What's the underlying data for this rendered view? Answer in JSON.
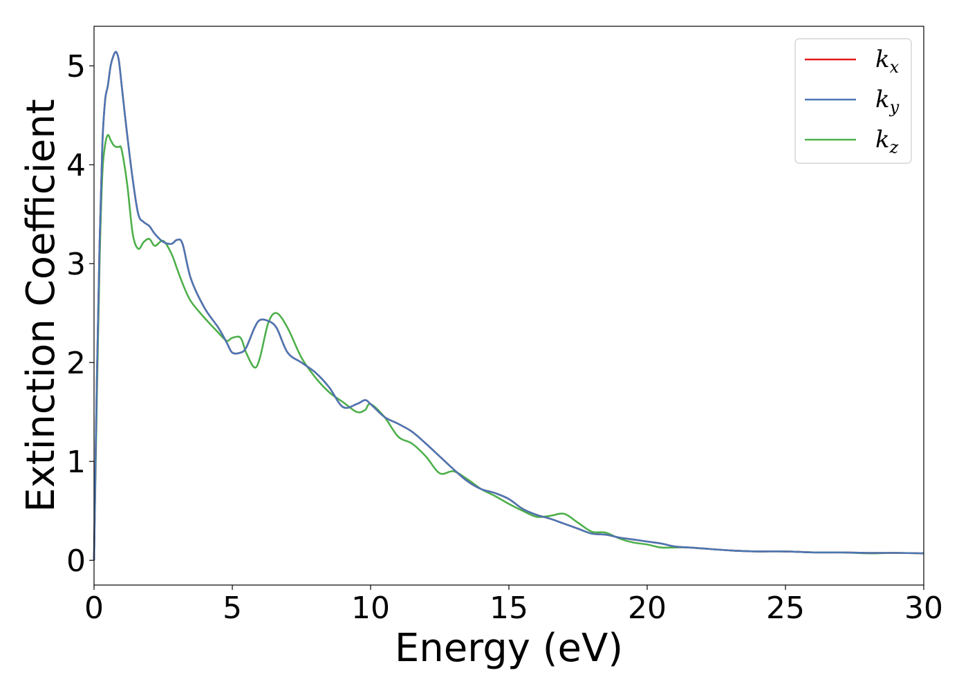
{
  "chart_data": {
    "type": "line",
    "title": "",
    "xlabel": "Energy (eV)",
    "ylabel": "Extinction Coefficient",
    "xlim": [
      0,
      30
    ],
    "ylim": [
      -0.25,
      5.4
    ],
    "xticks": [
      0,
      5,
      10,
      15,
      20,
      25,
      30
    ],
    "yticks": [
      0,
      1,
      2,
      3,
      4,
      5
    ],
    "xtick_labels": [
      "0",
      "5",
      "10",
      "15",
      "20",
      "25",
      "30"
    ],
    "ytick_labels": [
      "0",
      "1",
      "2",
      "3",
      "4",
      "5"
    ],
    "grid": false,
    "legend_position": "top-right",
    "series": [
      {
        "name": "k_x",
        "label_main": "k",
        "label_sub": "x",
        "color": "#e41a1c",
        "x": [
          0,
          0.1,
          0.2,
          0.3,
          0.4,
          0.5,
          0.6,
          0.7,
          0.8,
          0.9,
          1.0,
          1.2,
          1.4,
          1.6,
          1.8,
          2.0,
          2.2,
          2.5,
          2.8,
          3.0,
          3.2,
          3.5,
          4.0,
          4.5,
          4.8,
          5.0,
          5.3,
          5.5,
          5.8,
          6.0,
          6.3,
          6.6,
          7.0,
          7.5,
          8.0,
          8.5,
          9.0,
          9.5,
          9.8,
          10.0,
          10.5,
          11.0,
          11.5,
          12.0,
          12.5,
          13.0,
          13.5,
          14.0,
          14.5,
          15.0,
          15.5,
          16.0,
          16.5,
          17.0,
          17.5,
          18.0,
          18.5,
          19.0,
          19.5,
          20.0,
          20.5,
          21.0,
          21.5,
          22.0,
          23.0,
          24.0,
          25.0,
          26.0,
          27.0,
          28.0,
          29.0,
          30.0
        ],
        "y": [
          0,
          1.8,
          3.2,
          4.2,
          4.65,
          4.8,
          5.0,
          5.1,
          5.14,
          5.05,
          4.8,
          4.3,
          3.85,
          3.5,
          3.42,
          3.38,
          3.3,
          3.22,
          3.2,
          3.24,
          3.2,
          2.85,
          2.55,
          2.35,
          2.2,
          2.1,
          2.1,
          2.15,
          2.35,
          2.43,
          2.42,
          2.35,
          2.1,
          2.0,
          1.9,
          1.75,
          1.55,
          1.58,
          1.62,
          1.58,
          1.45,
          1.38,
          1.3,
          1.18,
          1.05,
          0.92,
          0.8,
          0.72,
          0.68,
          0.62,
          0.52,
          0.46,
          0.42,
          0.37,
          0.32,
          0.27,
          0.26,
          0.23,
          0.21,
          0.19,
          0.17,
          0.14,
          0.13,
          0.12,
          0.1,
          0.09,
          0.09,
          0.08,
          0.08,
          0.075,
          0.075,
          0.07
        ]
      },
      {
        "name": "k_y",
        "label_main": "k",
        "label_sub": "y",
        "color": "#4a77b4",
        "x": [
          0,
          0.1,
          0.2,
          0.3,
          0.4,
          0.5,
          0.6,
          0.7,
          0.8,
          0.9,
          1.0,
          1.2,
          1.4,
          1.6,
          1.8,
          2.0,
          2.2,
          2.5,
          2.8,
          3.0,
          3.2,
          3.5,
          4.0,
          4.5,
          4.8,
          5.0,
          5.3,
          5.5,
          5.8,
          6.0,
          6.3,
          6.6,
          7.0,
          7.5,
          8.0,
          8.5,
          9.0,
          9.5,
          9.8,
          10.0,
          10.5,
          11.0,
          11.5,
          12.0,
          12.5,
          13.0,
          13.5,
          14.0,
          14.5,
          15.0,
          15.5,
          16.0,
          16.5,
          17.0,
          17.5,
          18.0,
          18.5,
          19.0,
          19.5,
          20.0,
          20.5,
          21.0,
          21.5,
          22.0,
          23.0,
          24.0,
          25.0,
          26.0,
          27.0,
          28.0,
          29.0,
          30.0
        ],
        "y": [
          0,
          1.8,
          3.2,
          4.2,
          4.65,
          4.8,
          5.0,
          5.1,
          5.14,
          5.05,
          4.8,
          4.3,
          3.85,
          3.5,
          3.42,
          3.38,
          3.3,
          3.22,
          3.2,
          3.24,
          3.2,
          2.85,
          2.55,
          2.35,
          2.2,
          2.1,
          2.1,
          2.15,
          2.35,
          2.43,
          2.42,
          2.35,
          2.1,
          2.0,
          1.9,
          1.75,
          1.55,
          1.58,
          1.62,
          1.58,
          1.45,
          1.38,
          1.3,
          1.18,
          1.05,
          0.92,
          0.8,
          0.72,
          0.68,
          0.62,
          0.52,
          0.46,
          0.42,
          0.37,
          0.32,
          0.27,
          0.26,
          0.23,
          0.21,
          0.19,
          0.17,
          0.14,
          0.13,
          0.12,
          0.1,
          0.09,
          0.09,
          0.08,
          0.08,
          0.075,
          0.075,
          0.07
        ]
      },
      {
        "name": "k_z",
        "label_main": "k",
        "label_sub": "z",
        "color": "#4daf4a",
        "x": [
          0,
          0.1,
          0.2,
          0.3,
          0.4,
          0.5,
          0.6,
          0.7,
          0.8,
          0.9,
          1.0,
          1.2,
          1.4,
          1.6,
          1.8,
          2.0,
          2.2,
          2.5,
          2.8,
          3.0,
          3.2,
          3.5,
          4.0,
          4.5,
          4.8,
          5.0,
          5.3,
          5.5,
          5.8,
          6.0,
          6.3,
          6.6,
          7.0,
          7.5,
          8.0,
          8.5,
          9.0,
          9.5,
          9.8,
          10.0,
          10.5,
          11.0,
          11.5,
          12.0,
          12.5,
          13.0,
          13.5,
          14.0,
          14.5,
          15.0,
          15.5,
          16.0,
          16.5,
          17.0,
          17.5,
          18.0,
          18.5,
          19.0,
          19.5,
          20.0,
          20.5,
          21.0,
          21.5,
          22.0,
          23.0,
          24.0,
          25.0,
          26.0,
          27.0,
          28.0,
          29.0,
          30.0
        ],
        "y": [
          0,
          1.6,
          3.0,
          3.9,
          4.2,
          4.3,
          4.25,
          4.2,
          4.18,
          4.18,
          4.15,
          3.8,
          3.3,
          3.15,
          3.22,
          3.25,
          3.18,
          3.23,
          3.1,
          2.95,
          2.8,
          2.62,
          2.45,
          2.3,
          2.22,
          2.25,
          2.25,
          2.1,
          1.95,
          2.05,
          2.4,
          2.5,
          2.35,
          2.05,
          1.85,
          1.7,
          1.6,
          1.5,
          1.52,
          1.58,
          1.45,
          1.25,
          1.18,
          1.05,
          0.88,
          0.9,
          0.82,
          0.72,
          0.65,
          0.57,
          0.5,
          0.44,
          0.45,
          0.47,
          0.38,
          0.29,
          0.28,
          0.22,
          0.18,
          0.16,
          0.13,
          0.13,
          0.13,
          0.12,
          0.1,
          0.09,
          0.09,
          0.08,
          0.08,
          0.07,
          0.075,
          0.07
        ]
      }
    ]
  }
}
